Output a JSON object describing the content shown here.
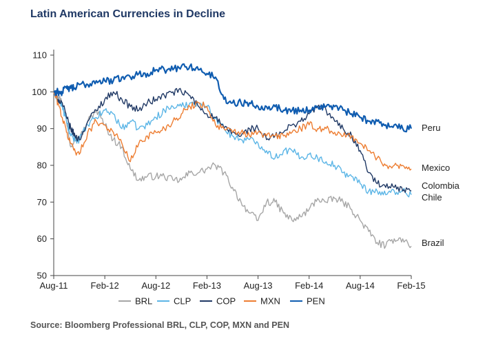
{
  "title": "Latin American Currencies in Decline",
  "source": "Source: Bloomberg Professional   BRL, CLP, COP, MXN and PEN",
  "chart_data": {
    "type": "line",
    "title": "Latin American Currencies in Decline",
    "xlabel": "",
    "ylabel": "",
    "ylim": [
      50,
      110
    ],
    "yticks": [
      50,
      60,
      70,
      80,
      90,
      100,
      110
    ],
    "xticks": [
      {
        "t": 0,
        "label": "Aug-11"
      },
      {
        "t": 6,
        "label": "Feb-12"
      },
      {
        "t": 12,
        "label": "Aug-12"
      },
      {
        "t": 18,
        "label": "Feb-13"
      },
      {
        "t": 24,
        "label": "Aug-13"
      },
      {
        "t": 30,
        "label": "Feb-14"
      },
      {
        "t": 36,
        "label": "Aug-14"
      },
      {
        "t": 42,
        "label": "Feb-15"
      }
    ],
    "x_months": [
      0,
      0.5,
      1,
      1.5,
      2,
      2.5,
      3,
      4,
      5,
      6,
      7,
      8,
      9,
      10,
      11,
      12,
      13,
      14,
      15,
      16,
      17,
      18,
      19,
      20,
      21,
      22,
      23,
      24,
      25,
      26,
      27,
      28,
      29,
      30,
      31,
      32,
      33,
      34,
      35,
      36,
      37,
      38,
      39,
      40,
      41,
      42
    ],
    "grid": false,
    "legend": "bottom",
    "series": [
      {
        "name": "BRL",
        "code": "BRL",
        "color": "#a6a6a6",
        "end_label": "Brazil",
        "values": [
          100,
          99,
          97,
          92,
          85,
          88,
          87,
          92,
          95,
          91,
          87,
          85,
          79,
          76,
          77,
          77,
          77,
          76,
          76,
          78,
          78,
          79,
          80,
          78,
          74,
          70,
          67,
          65,
          70,
          70,
          67,
          65,
          66,
          68,
          71,
          70,
          71,
          70,
          68,
          65,
          62,
          59,
          58,
          60,
          60,
          58
        ]
      },
      {
        "name": "CLP",
        "code": "CLP",
        "color": "#5bb5e6",
        "end_label": "",
        "values": [
          100,
          98,
          96,
          92,
          88,
          87,
          87,
          91,
          93,
          95,
          94,
          90,
          92,
          90,
          91,
          93,
          95,
          96,
          96,
          97,
          97,
          96,
          93,
          90,
          88,
          87,
          87,
          86,
          84,
          82,
          84,
          84,
          82,
          83,
          82,
          81,
          80,
          78,
          77,
          75,
          73,
          73,
          72,
          73,
          73,
          72
        ]
      },
      {
        "name": "COP",
        "code": "COP",
        "color": "#1f3864",
        "end_label": "Colombia",
        "values": [
          100,
          98,
          97,
          93,
          90,
          88,
          87,
          92,
          95,
          98,
          100,
          98,
          96,
          95,
          97,
          98,
          99,
          100,
          100,
          99,
          96,
          94,
          93,
          90,
          89,
          88,
          90,
          90,
          87,
          88,
          89,
          91,
          92,
          94,
          96,
          95,
          92,
          90,
          88,
          84,
          78,
          75,
          74,
          74,
          73,
          73
        ]
      },
      {
        "name": "MXN",
        "code": "MXN",
        "color": "#ed7d31",
        "end_label": "Mexico",
        "values": [
          100,
          97,
          93,
          89,
          86,
          84,
          83,
          89,
          92,
          91,
          89,
          86,
          81,
          86,
          88,
          89,
          90,
          92,
          94,
          96,
          97,
          96,
          91,
          90,
          89,
          89,
          88,
          89,
          88,
          88,
          88,
          89,
          90,
          91,
          90,
          90,
          89,
          88,
          88,
          86,
          84,
          82,
          80,
          80,
          80,
          79
        ]
      },
      {
        "name": "PEN",
        "code": "PEN",
        "color": "#0f5cb0",
        "end_label": "Peru",
        "values": [
          100,
          100,
          100,
          101,
          101,
          101,
          102,
          102,
          103,
          103,
          103,
          104,
          104,
          105,
          105,
          106,
          106,
          106,
          107,
          107,
          106,
          105,
          104,
          98,
          97,
          97,
          97,
          96,
          96,
          96,
          95,
          95,
          95,
          95,
          96,
          96,
          96,
          95,
          94,
          93,
          92,
          92,
          91,
          91,
          90,
          90
        ]
      }
    ],
    "extra_end_labels": [
      {
        "label": "Chile",
        "value": 71
      }
    ]
  }
}
